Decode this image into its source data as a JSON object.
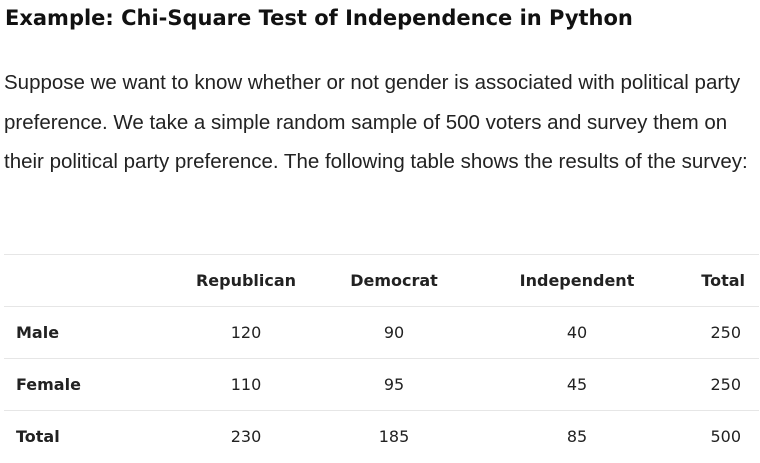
{
  "heading": "Example: Chi-Square Test of Independence in Python",
  "paragraph": "Suppose we want to know whether or not gender is associated with political party preference. We take a simple random sample of 500 voters and survey them on their political party preference. The following table shows the results of the survey:",
  "table": {
    "headers": [
      "",
      "Republican",
      "Democrat",
      "Independent",
      "Total"
    ],
    "rows": [
      {
        "label": "Male",
        "values": [
          "120",
          "90",
          "40",
          "250"
        ]
      },
      {
        "label": "Female",
        "values": [
          "110",
          "95",
          "45",
          "250"
        ]
      },
      {
        "label": "Total",
        "values": [
          "230",
          "185",
          "85",
          "500"
        ]
      }
    ]
  }
}
